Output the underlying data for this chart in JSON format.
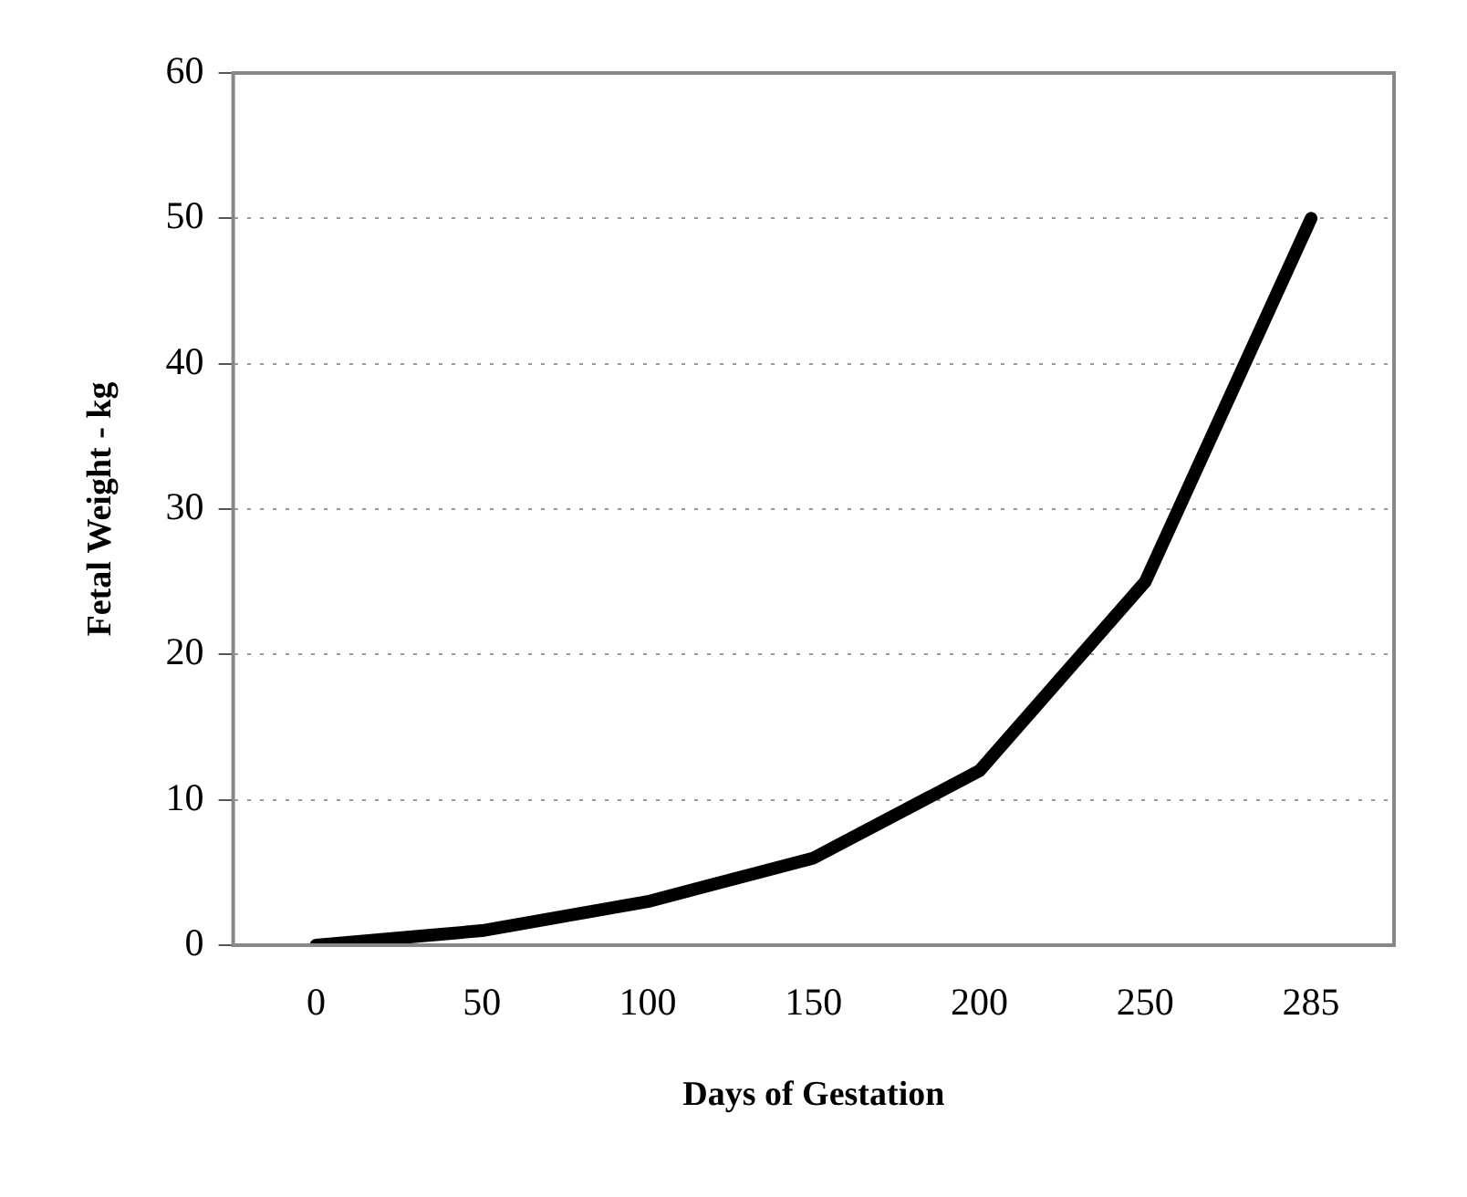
{
  "chart_data": {
    "type": "line",
    "xlabel": "Days of Gestation",
    "ylabel": "Fetal Weight - kg",
    "categories": [
      "0",
      "50",
      "100",
      "150",
      "200",
      "250",
      "285"
    ],
    "series": [
      {
        "color": "#000000",
        "values": [
          0,
          1,
          3,
          6,
          12,
          25,
          50
        ]
      }
    ],
    "ylim": [
      0,
      60
    ],
    "yticks": [
      0,
      10,
      20,
      30,
      40,
      50,
      60
    ],
    "grid": "y",
    "legend": false,
    "marker": "none",
    "line_style": "solid"
  }
}
